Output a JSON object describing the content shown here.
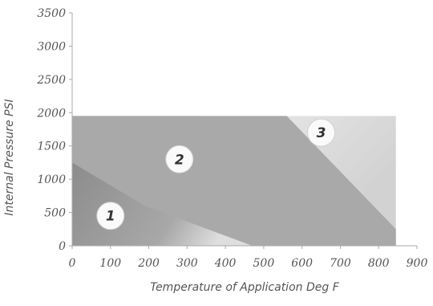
{
  "chart_data": {
    "type": "area",
    "xlabel": "Temperature of Application Deg F",
    "ylabel": "Internal Pressure PSI",
    "xlim": [
      0,
      900
    ],
    "ylim": [
      0,
      3500
    ],
    "x_ticks": [
      "0",
      "100",
      "200",
      "300",
      "400",
      "500",
      "600",
      "700",
      "800",
      "900"
    ],
    "y_ticks": [
      "0",
      "500",
      "1000",
      "1500",
      "2000",
      "2500",
      "3000",
      "3500"
    ],
    "grid": false,
    "operating_envelope": {
      "max_temperature": 845,
      "max_pressure": 1950
    },
    "zones": [
      {
        "label": "1",
        "x": 100,
        "y": 450
      },
      {
        "label": "2",
        "x": 280,
        "y": 1300
      },
      {
        "label": "3",
        "x": 650,
        "y": 1700
      }
    ]
  },
  "colors": {
    "zone_1": "#8f8f8f",
    "zone_2": "#a9a9a9",
    "zone_3": "#ececec",
    "axis": "#aaaaaa",
    "text": "#555555"
  }
}
